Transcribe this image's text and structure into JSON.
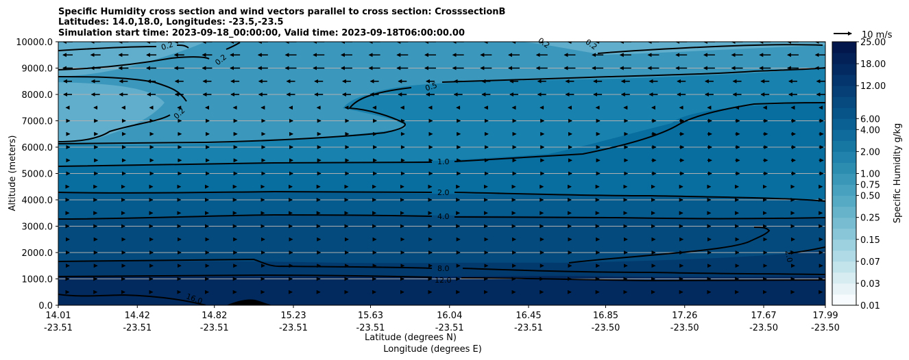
{
  "chart_data": {
    "type": "contour",
    "title_lines": [
      "Specific Humidity cross section and wind vectors parallel to cross section: CrosssectionB",
      "Latitudes: 14.0,18.0, Longitudes: -23.5,-23.5",
      "Simulation start time: 2023-09-18_00:00:00, Valid time: 2023-09-18T06:00:00.00"
    ],
    "xlabel_lat": "Latitude (degrees N)",
    "xlabel_lon": "Longitude (degrees E)",
    "ylabel": "Altitude (meters)",
    "x_ticks": [
      {
        "lat": "14.01",
        "lon": "-23.51"
      },
      {
        "lat": "14.42",
        "lon": "-23.51"
      },
      {
        "lat": "14.82",
        "lon": "-23.51"
      },
      {
        "lat": "15.23",
        "lon": "-23.51"
      },
      {
        "lat": "15.63",
        "lon": "-23.51"
      },
      {
        "lat": "16.04",
        "lon": "-23.51"
      },
      {
        "lat": "16.45",
        "lon": "-23.51"
      },
      {
        "lat": "16.85",
        "lon": "-23.50"
      },
      {
        "lat": "17.26",
        "lon": "-23.50"
      },
      {
        "lat": "17.67",
        "lon": "-23.50"
      },
      {
        "lat": "17.99",
        "lon": "-23.50"
      }
    ],
    "y_ticks": [
      "0.0",
      "1000.0",
      "2000.0",
      "3000.0",
      "4000.0",
      "5000.0",
      "6000.0",
      "7000.0",
      "8000.0",
      "9000.0",
      "10000.0"
    ],
    "ylim": [
      0,
      10000
    ],
    "grid": "horizontal",
    "colorbar": {
      "label": "Specific Humidity g/kg",
      "levels": [
        0.01,
        0.02,
        0.03,
        0.05,
        0.07,
        0.1,
        0.15,
        0.2,
        0.25,
        0.35,
        0.5,
        0.75,
        1.0,
        1.5,
        2.0,
        3.0,
        4.0,
        6.0,
        8.0,
        10.0,
        12.0,
        15.0,
        18.0,
        21.0,
        25.0
      ],
      "tick_labels": [
        "0.01",
        "0.03",
        "0.07",
        "0.15",
        "0.25",
        "0.50",
        "0.75",
        "1.00",
        "2.00",
        "4.00",
        "6.00",
        "12.00",
        "18.00",
        "25.00"
      ],
      "colors": [
        "#f7fbfd",
        "#e8f3f7",
        "#d6ecf1",
        "#c4e4ec",
        "#b0dbe6",
        "#9dd1df",
        "#89c6d7",
        "#77bcd0",
        "#66b3ca",
        "#57aac4",
        "#48a1be",
        "#3a97b7",
        "#2d8db1",
        "#2183ab",
        "#1777a3",
        "#0f6b9b",
        "#0a6092",
        "#075489",
        "#064a80",
        "#053f76",
        "#04356c",
        "#032b62",
        "#032157",
        "#02174c"
      ]
    },
    "wind_reference": "10 m/s",
    "contour_labels": [
      "0.2",
      "0.2",
      "0.2",
      "0.2",
      "0.2",
      "0.5",
      "1.0",
      "2.0",
      "4.0",
      "8.0",
      "12.0",
      "16.0",
      "2.0"
    ],
    "colors": {
      "band_high": "#60aecb",
      "band_upper": "#3b97bc",
      "band_mid_upper": "#1981ad",
      "band_mid": "#086d9f",
      "band_lower_mid": "#055a8e",
      "band_lower": "#044a7d",
      "band_surface": "#033a6e",
      "band_bottom": "#022a5e"
    }
  }
}
